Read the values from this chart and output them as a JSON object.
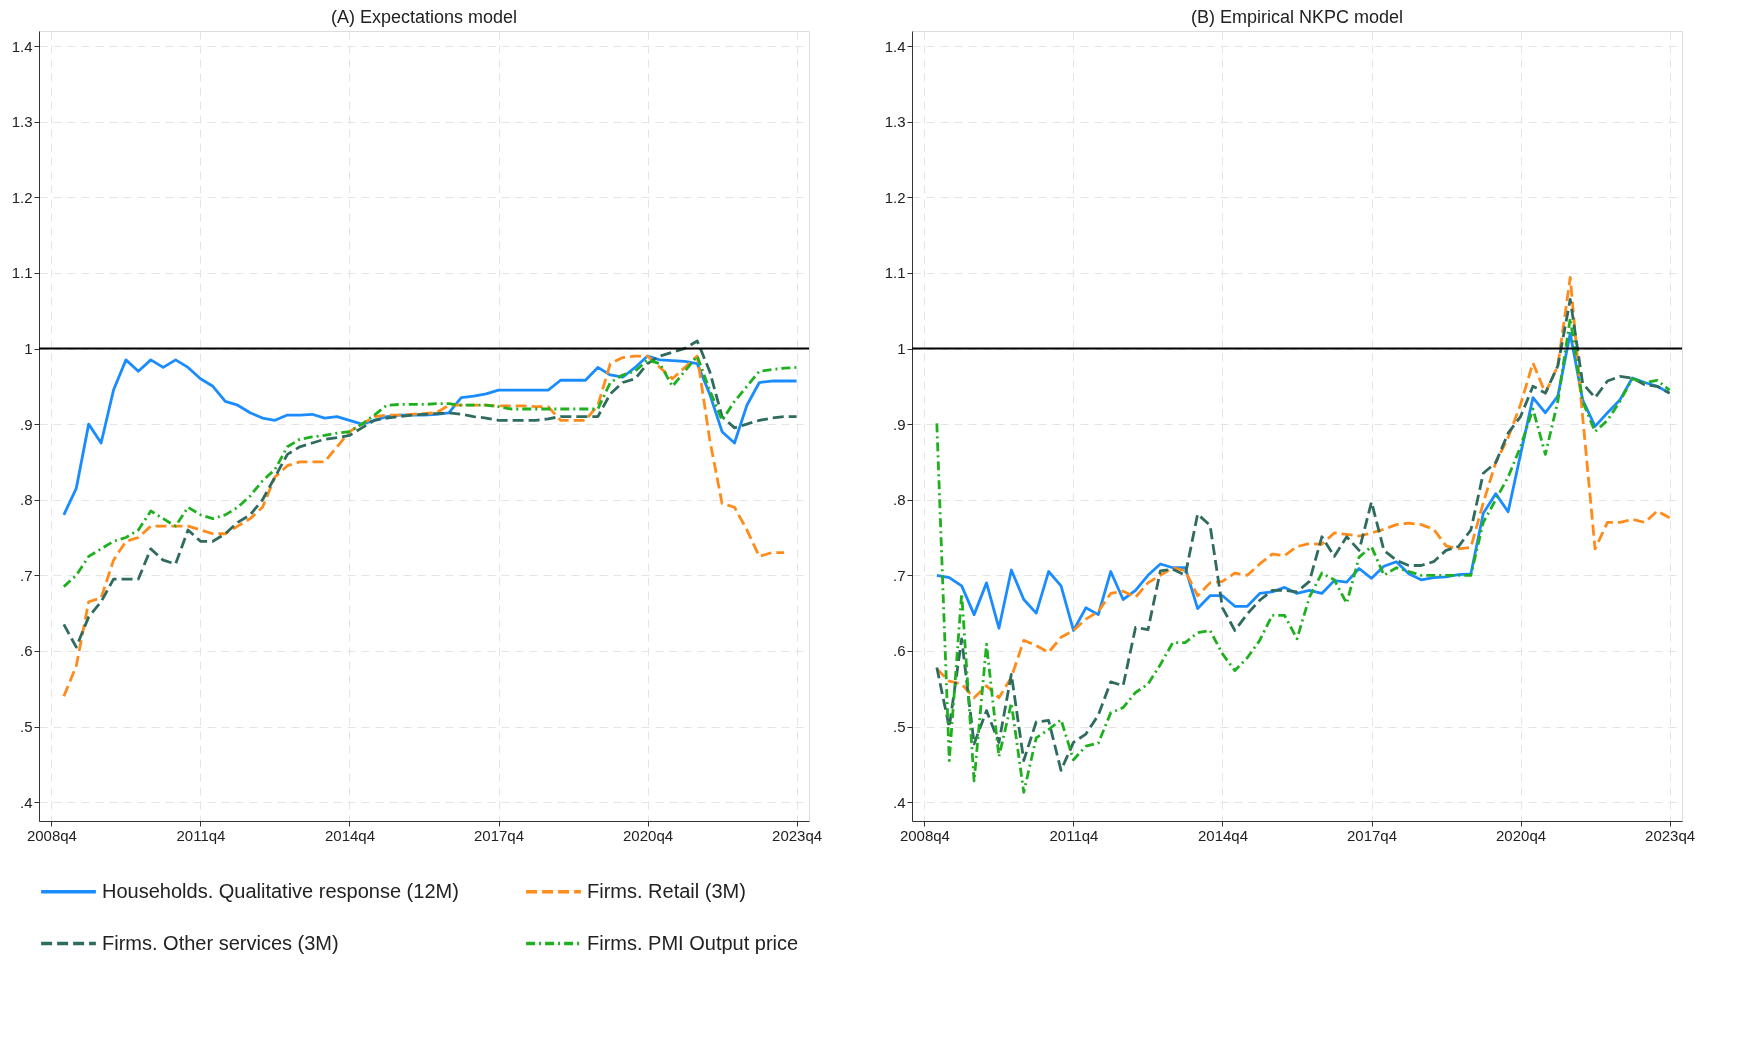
{
  "chart_data": [
    {
      "type": "line",
      "title": "(A) Expectations model",
      "ylim": [
        0.375,
        1.42
      ],
      "categories": [
        "2008q4",
        null,
        null,
        null,
        null,
        null,
        null,
        null,
        null,
        null,
        null,
        null,
        "2011q4",
        null,
        null,
        null,
        null,
        null,
        null,
        null,
        null,
        null,
        null,
        null,
        "2014q4",
        null,
        null,
        null,
        null,
        null,
        null,
        null,
        null,
        null,
        null,
        null,
        "2017q4",
        null,
        null,
        null,
        null,
        null,
        null,
        null,
        null,
        null,
        null,
        null,
        "2020q4",
        null,
        null,
        null,
        null,
        null,
        null,
        null,
        null,
        null,
        null,
        null,
        "2023q4"
      ],
      "yticks": [
        {
          "value": 0.4,
          "label": ".4"
        },
        {
          "value": 0.5,
          "label": ".5"
        },
        {
          "value": 0.6,
          "label": ".6"
        },
        {
          "value": 0.7,
          "label": ".7"
        },
        {
          "value": 0.8,
          "label": ".8"
        },
        {
          "value": 0.9,
          "label": ".9"
        },
        1,
        1.1,
        1.2,
        1.3,
        1.4
      ],
      "grid": true,
      "legend": "bottom",
      "ref_lines": [
        {
          "axis": "y",
          "value": 1,
          "color": "#000000"
        }
      ],
      "series": [
        {
          "name": "Households. Qualitative response (12M)",
          "color": "#1a8cff",
          "line_style": "solid",
          "values": [
            null,
            0.78,
            0.815,
            0.9,
            0.875,
            0.945,
            0.985,
            0.97,
            0.985,
            0.975,
            0.985,
            0.975,
            0.96,
            0.95,
            0.93,
            0.925,
            0.915,
            0.908,
            0.905,
            0.912,
            0.912,
            0.913,
            0.908,
            0.91,
            0.905,
            0.9,
            0.905,
            0.91,
            0.912,
            0.912,
            0.912,
            0.913,
            0.915,
            0.935,
            0.937,
            0.94,
            0.945,
            0.945,
            0.945,
            0.945,
            0.945,
            0.958,
            0.958,
            0.958,
            0.975,
            0.965,
            0.962,
            0.975,
            0.99,
            0.985,
            0.984,
            0.983,
            0.98,
            0.94,
            0.89,
            0.875,
            0.925,
            0.955,
            0.957,
            0.957,
            0.957
          ]
        },
        {
          "name": "Firms. Retail (3M)",
          "color": "#ff8c1a",
          "line_style": "dashed",
          "values": [
            null,
            0.54,
            0.58,
            0.665,
            0.67,
            0.72,
            0.745,
            0.75,
            0.765,
            0.765,
            0.765,
            0.765,
            0.76,
            0.755,
            0.755,
            0.765,
            0.775,
            0.79,
            0.83,
            0.845,
            0.85,
            0.85,
            0.85,
            0.87,
            0.89,
            0.9,
            0.91,
            0.912,
            0.912,
            0.913,
            0.914,
            0.915,
            0.925,
            0.925,
            0.925,
            0.925,
            0.924,
            0.924,
            0.924,
            0.923,
            0.923,
            0.905,
            0.905,
            0.905,
            0.925,
            0.98,
            0.988,
            0.99,
            0.99,
            0.975,
            0.96,
            0.975,
            0.99,
            0.88,
            0.795,
            0.79,
            0.76,
            0.725,
            0.73,
            0.73,
            null
          ]
        },
        {
          "name": "Firms. Other services (3M)",
          "color": "#2f6b5e",
          "line_style": "dashed",
          "values": [
            null,
            0.635,
            0.605,
            0.645,
            0.665,
            0.695,
            0.695,
            0.695,
            0.735,
            0.72,
            0.715,
            0.76,
            0.745,
            0.745,
            0.755,
            0.77,
            0.78,
            0.8,
            0.83,
            0.86,
            0.87,
            0.875,
            0.88,
            0.882,
            0.885,
            0.895,
            0.905,
            0.908,
            0.91,
            0.912,
            0.913,
            0.914,
            0.915,
            0.913,
            0.91,
            0.908,
            0.905,
            0.905,
            0.905,
            0.905,
            0.907,
            0.91,
            0.91,
            0.91,
            0.91,
            0.94,
            0.955,
            0.96,
            0.98,
            0.99,
            0.995,
            1.0,
            1.01,
            0.97,
            0.91,
            0.895,
            0.9,
            0.905,
            0.908,
            0.91,
            0.91
          ]
        },
        {
          "name": "Firms. PMI Output price",
          "color": "#1fb01f",
          "line_style": "dotted",
          "values": [
            null,
            0.685,
            0.7,
            0.725,
            0.735,
            0.745,
            0.75,
            0.76,
            0.785,
            0.775,
            0.765,
            0.79,
            0.78,
            0.775,
            0.78,
            0.79,
            0.805,
            0.825,
            0.84,
            0.87,
            0.88,
            0.883,
            0.885,
            0.888,
            0.89,
            0.9,
            0.912,
            0.925,
            0.926,
            0.926,
            0.926,
            0.927,
            0.927,
            0.925,
            0.925,
            0.925,
            0.923,
            0.92,
            0.92,
            0.92,
            0.92,
            0.92,
            0.92,
            0.92,
            0.92,
            0.955,
            0.965,
            0.97,
            0.985,
            0.98,
            0.95,
            0.97,
            0.99,
            0.945,
            0.905,
            0.93,
            0.95,
            0.97,
            0.972,
            0.974,
            0.975
          ]
        }
      ]
    },
    {
      "type": "line",
      "title": "(B) Empirical NKPC model",
      "ylim": [
        0.375,
        1.42
      ],
      "categories": [
        "2008q4",
        null,
        null,
        null,
        null,
        null,
        null,
        null,
        null,
        null,
        null,
        null,
        "2011q4",
        null,
        null,
        null,
        null,
        null,
        null,
        null,
        null,
        null,
        null,
        null,
        "2014q4",
        null,
        null,
        null,
        null,
        null,
        null,
        null,
        null,
        null,
        null,
        null,
        "2017q4",
        null,
        null,
        null,
        null,
        null,
        null,
        null,
        null,
        null,
        null,
        null,
        "2020q4",
        null,
        null,
        null,
        null,
        null,
        null,
        null,
        null,
        null,
        null,
        null,
        "2023q4"
      ],
      "yticks": [
        {
          "value": 0.4,
          "label": ".4"
        },
        {
          "value": 0.5,
          "label": ".5"
        },
        {
          "value": 0.6,
          "label": ".6"
        },
        {
          "value": 0.7,
          "label": ".7"
        },
        {
          "value": 0.8,
          "label": ".8"
        },
        {
          "value": 0.9,
          "label": ".9"
        },
        1,
        1.1,
        1.2,
        1.3,
        1.4
      ],
      "grid": true,
      "legend": "bottom",
      "ref_lines": [
        {
          "axis": "y",
          "value": 1,
          "color": "#000000"
        }
      ],
      "series": [
        {
          "name": "Households. Qualitative response (12M)",
          "color": "#1a8cff",
          "line_style": "solid",
          "values": [
            null,
            0.7,
            0.697,
            0.686,
            0.648,
            0.69,
            0.63,
            0.707,
            0.668,
            0.65,
            0.705,
            0.686,
            0.627,
            0.657,
            0.648,
            0.705,
            0.668,
            0.68,
            0.7,
            0.715,
            0.71,
            0.71,
            0.656,
            0.673,
            0.673,
            0.659,
            0.659,
            0.676,
            0.678,
            0.684,
            0.676,
            0.68,
            0.676,
            0.693,
            0.691,
            0.709,
            0.696,
            0.712,
            0.718,
            0.702,
            0.694,
            0.697,
            0.698,
            0.701,
            0.702,
            0.782,
            0.808,
            0.784,
            0.86,
            0.935,
            0.915,
            0.937,
            1.02,
            0.932,
            0.897,
            0.915,
            0.932,
            0.961,
            0.955,
            0.95,
            0.941
          ]
        },
        {
          "name": "Firms. Retail (3M)",
          "color": "#ff8c1a",
          "line_style": "dashed",
          "values": [
            null,
            0.576,
            0.56,
            0.556,
            0.538,
            0.554,
            0.538,
            0.565,
            0.614,
            0.607,
            0.598,
            0.618,
            0.627,
            0.642,
            0.652,
            0.676,
            0.679,
            0.671,
            0.69,
            0.7,
            0.71,
            0.706,
            0.673,
            0.69,
            0.692,
            0.703,
            0.7,
            0.715,
            0.728,
            0.726,
            0.738,
            0.742,
            0.741,
            0.756,
            0.754,
            0.752,
            0.756,
            0.761,
            0.767,
            0.769,
            0.767,
            0.761,
            0.739,
            0.735,
            0.737,
            0.796,
            0.849,
            0.882,
            0.926,
            0.981,
            0.941,
            0.977,
            1.094,
            0.91,
            0.735,
            0.77,
            0.77,
            0.774,
            0.77,
            0.785,
            0.776
          ]
        },
        {
          "name": "Firms. Other services (3M)",
          "color": "#2f6b5e",
          "line_style": "dashed",
          "values": [
            null,
            0.578,
            0.499,
            0.616,
            0.477,
            0.521,
            0.479,
            0.569,
            0.455,
            0.506,
            0.508,
            0.442,
            0.479,
            0.49,
            0.515,
            0.559,
            0.554,
            0.631,
            0.628,
            0.706,
            0.708,
            0.7,
            0.781,
            0.766,
            0.657,
            0.627,
            0.649,
            0.667,
            0.68,
            0.68,
            0.678,
            0.692,
            0.751,
            0.725,
            0.751,
            0.733,
            0.797,
            0.733,
            0.72,
            0.713,
            0.713,
            0.718,
            0.733,
            0.738,
            0.76,
            0.835,
            0.849,
            0.888,
            0.91,
            0.95,
            0.941,
            0.977,
            1.065,
            0.954,
            0.935,
            0.957,
            0.963,
            0.961,
            0.952,
            0.95,
            0.941
          ]
        },
        {
          "name": "Firms. PMI Output price",
          "color": "#1fb01f",
          "line_style": "dotted",
          "values": [
            null,
            0.901,
            0.455,
            0.676,
            0.428,
            0.609,
            0.46,
            0.531,
            0.413,
            0.485,
            0.496,
            0.509,
            0.456,
            0.474,
            0.478,
            0.518,
            0.525,
            0.545,
            0.556,
            0.582,
            0.611,
            0.611,
            0.624,
            0.627,
            0.596,
            0.574,
            0.591,
            0.614,
            0.647,
            0.647,
            0.616,
            0.671,
            0.703,
            0.694,
            0.663,
            0.724,
            0.738,
            0.7,
            0.71,
            0.705,
            0.7,
            0.7,
            0.7,
            0.7,
            0.7,
            0.77,
            0.8,
            0.83,
            0.87,
            0.92,
            0.86,
            0.93,
            1.04,
            0.93,
            0.89,
            0.905,
            0.93,
            0.96,
            0.955,
            0.958,
            0.945
          ]
        }
      ]
    }
  ]
}
